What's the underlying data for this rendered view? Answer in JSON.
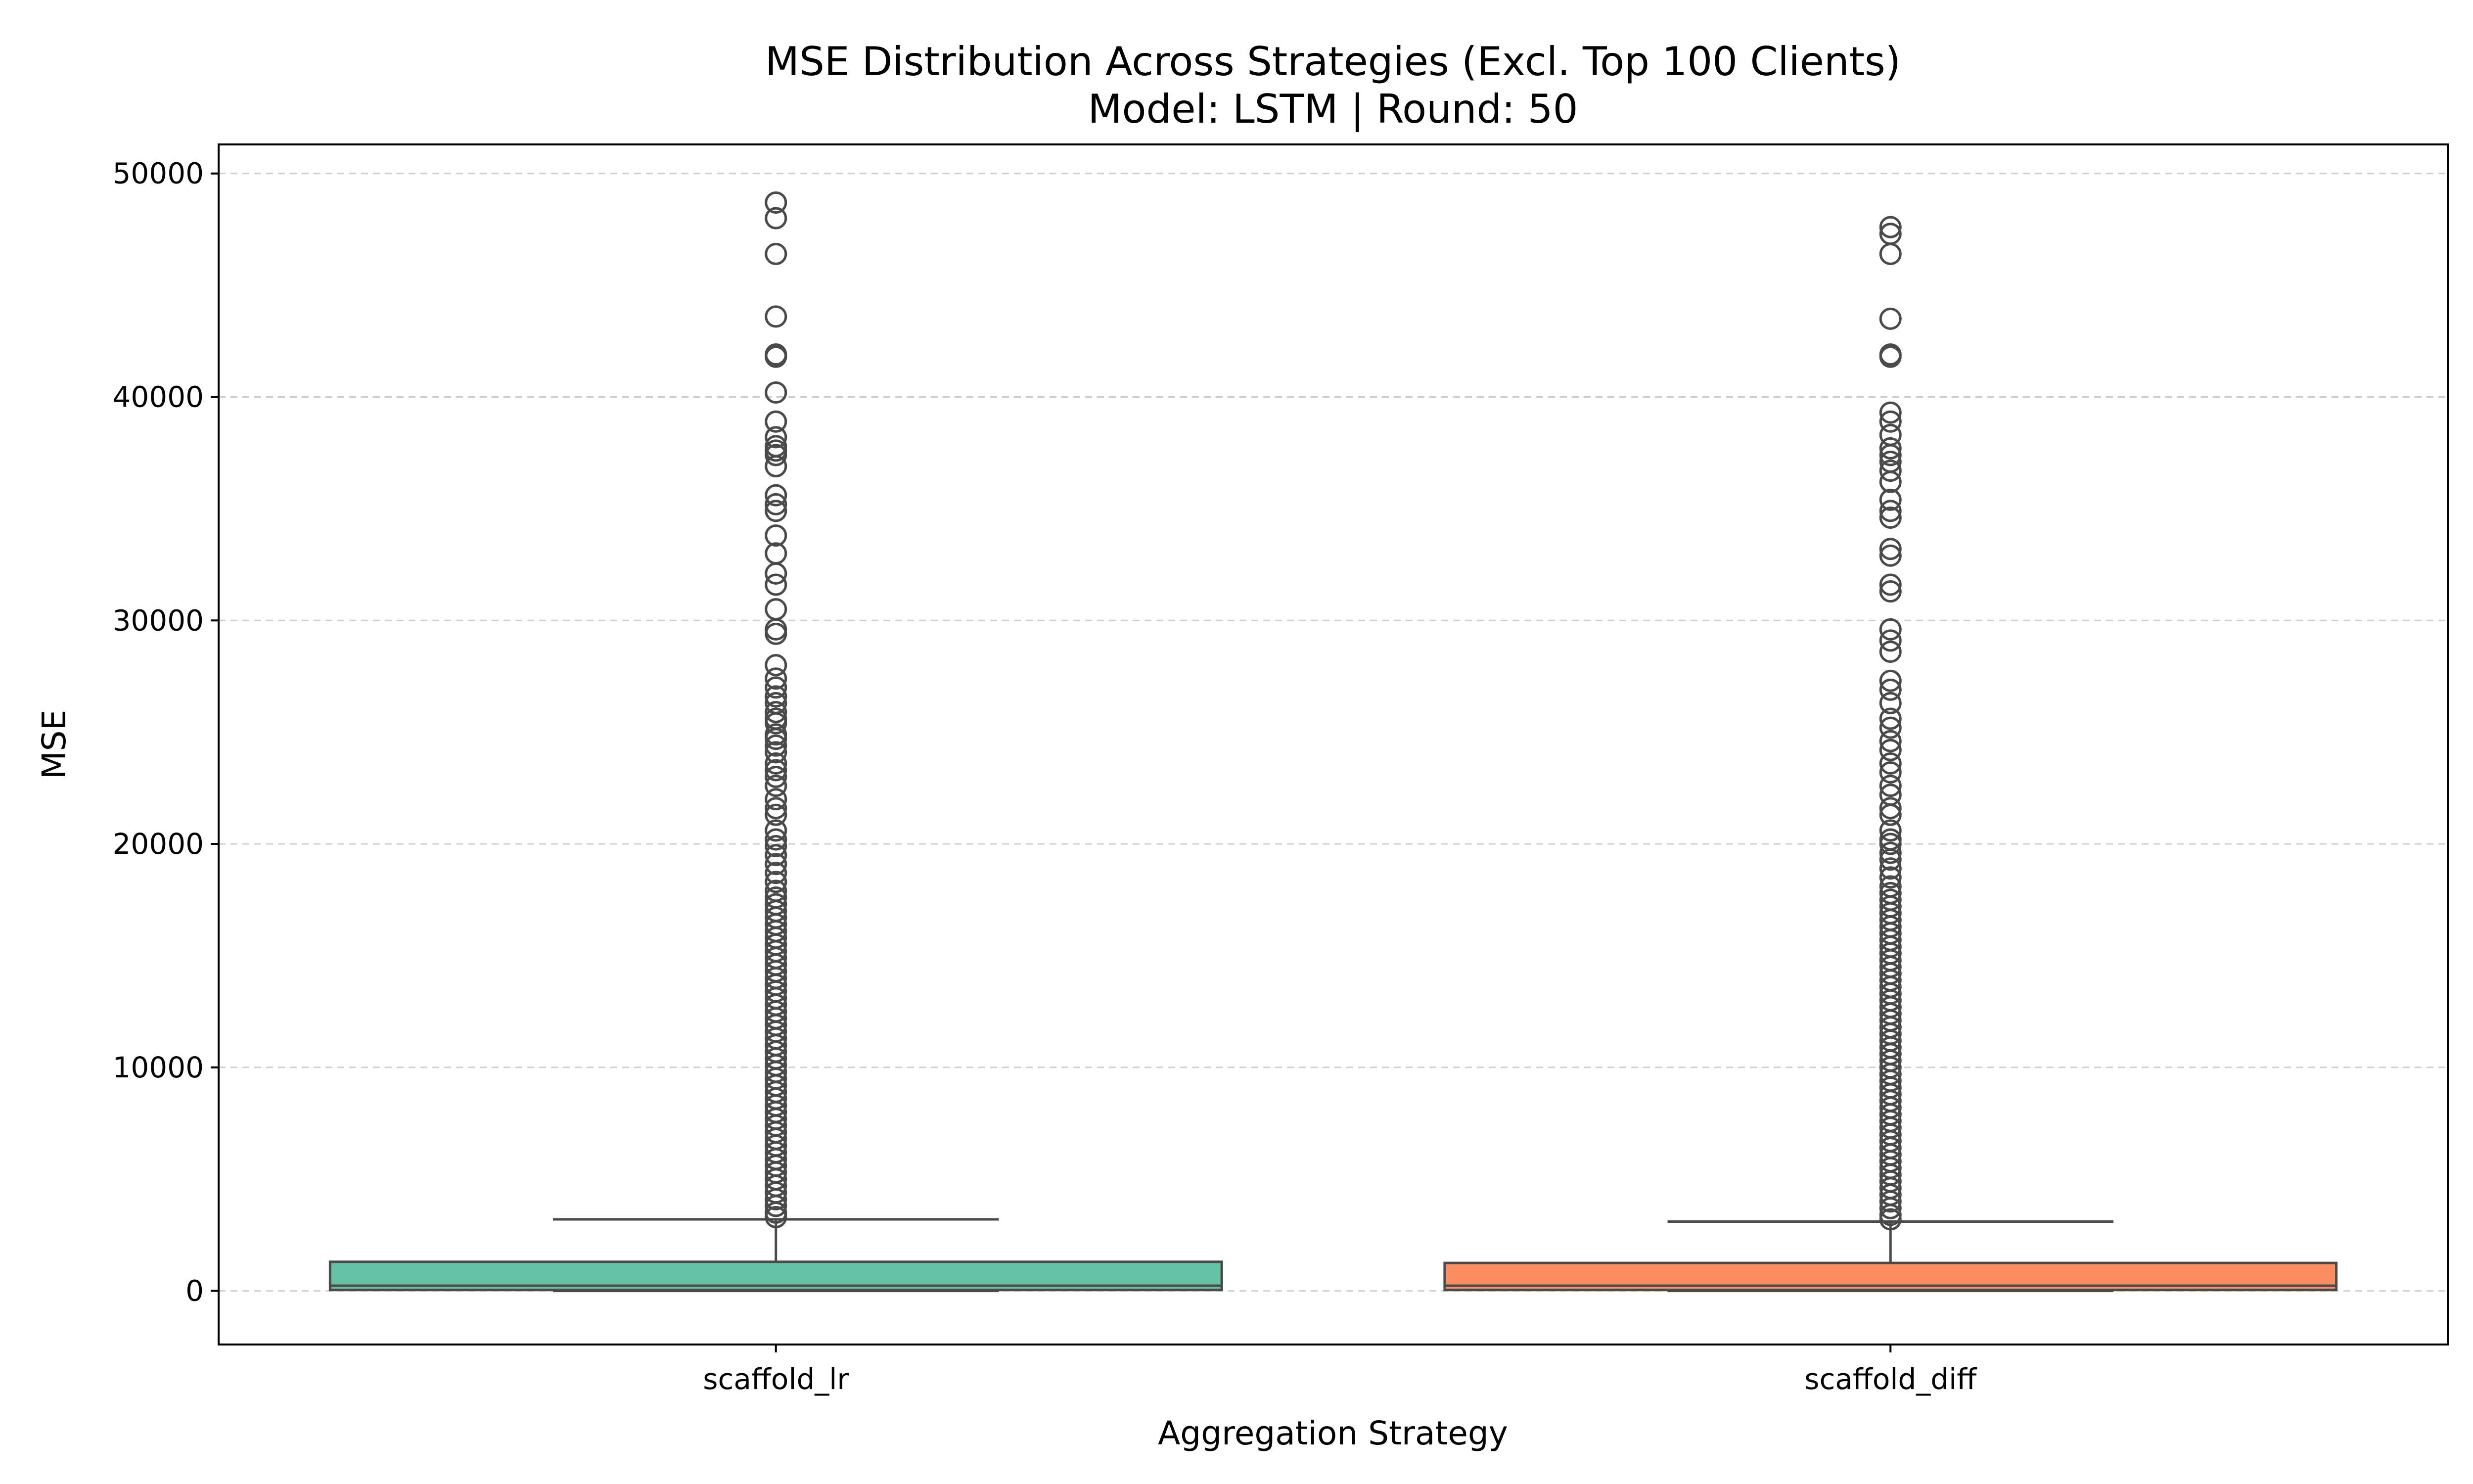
{
  "chart_data": {
    "type": "box",
    "title": "MSE Distribution Across Strategies (Excl. Top 100 Clients)",
    "subtitle": "Model: LSTM | Round: 50",
    "xlabel": "Aggregation Strategy",
    "ylabel": "MSE",
    "ylim": [
      -2400,
      51300
    ],
    "yticks": [
      0,
      10000,
      20000,
      30000,
      40000,
      50000
    ],
    "grid": "y-dashed",
    "categories": [
      "scaffold_lr",
      "scaffold_diff"
    ],
    "series": [
      {
        "category": "scaffold_lr",
        "color": "#66c2a5",
        "whisker_low": 0,
        "q1": 40,
        "median": 230,
        "q3": 1300,
        "whisker_high": 3200,
        "outliers": [
          48700,
          48000,
          46400,
          43600,
          41900,
          41800,
          40200,
          38900,
          38200,
          37800,
          37600,
          37400,
          36900,
          35600,
          35200,
          34900,
          33800,
          33000,
          32100,
          31600,
          30500,
          29600,
          29400,
          28000,
          27400,
          27000,
          26600,
          26300,
          25900,
          25600,
          25400,
          24900,
          24700,
          24400,
          24100,
          23600,
          23300,
          23000,
          22600,
          22000,
          21600,
          21300,
          20600,
          20200,
          19900,
          19500,
          19100,
          18700,
          18300,
          17900,
          17600,
          17300,
          17000,
          16700,
          16400,
          16100,
          15800,
          15500,
          15200,
          14900,
          14600,
          14300,
          14000,
          13700,
          13400,
          13100,
          12800,
          12500,
          12200,
          11900,
          11600,
          11300,
          11000,
          10700,
          10400,
          10100,
          9800,
          9500,
          9200,
          8900,
          8600,
          8300,
          8000,
          7700,
          7400,
          7100,
          6800,
          6500,
          6200,
          5900,
          5600,
          5300,
          5000,
          4700,
          4400,
          4100,
          3800,
          3500,
          3300
        ]
      },
      {
        "category": "scaffold_diff",
        "color": "#fc8d62",
        "whisker_low": 0,
        "q1": 40,
        "median": 230,
        "q3": 1250,
        "whisker_high": 3100,
        "outliers": [
          47600,
          47300,
          46400,
          43500,
          41900,
          41800,
          39300,
          38900,
          38300,
          37700,
          37400,
          37100,
          36700,
          36200,
          35400,
          34900,
          34600,
          33200,
          32900,
          31600,
          31300,
          29600,
          29100,
          28600,
          27300,
          26900,
          26300,
          25600,
          25200,
          24600,
          24200,
          23600,
          23200,
          22600,
          22200,
          21600,
          21300,
          20600,
          20200,
          20000,
          19600,
          19300,
          18900,
          18500,
          18100,
          17800,
          17500,
          17200,
          16900,
          16600,
          16300,
          16000,
          15700,
          15400,
          15100,
          14800,
          14500,
          14200,
          13900,
          13600,
          13300,
          13000,
          12700,
          12400,
          12100,
          11800,
          11500,
          11200,
          10900,
          10600,
          10300,
          10000,
          9700,
          9400,
          9100,
          8800,
          8500,
          8200,
          7900,
          7600,
          7300,
          7000,
          6700,
          6400,
          6100,
          5800,
          5500,
          5200,
          4900,
          4600,
          4300,
          4000,
          3700,
          3400,
          3200
        ]
      }
    ]
  }
}
